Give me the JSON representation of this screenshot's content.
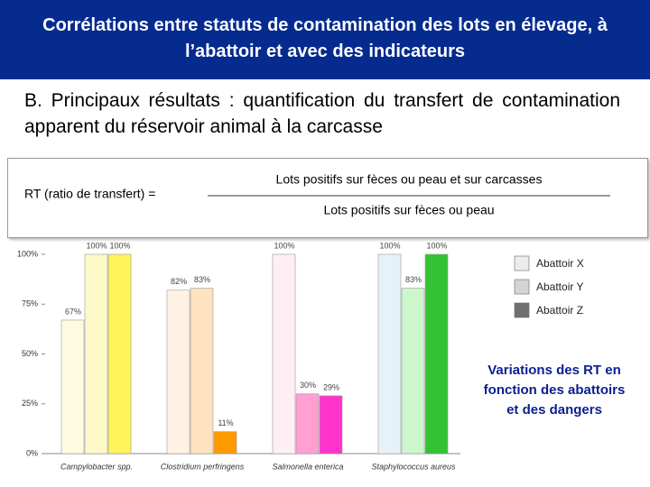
{
  "header": {
    "title": "Corrélations entre statuts de contamination des lots en élevage, à l’abattoir et avec des indicateurs"
  },
  "section": {
    "text": "B. Principaux résultats : quantification du transfert de contamination apparent du réservoir animal à la carcasse"
  },
  "formula": {
    "label": "RT (ratio de transfert) =",
    "numerator": "Lots positifs sur fèces ou peau et sur carcasses",
    "denominator": "Lots positifs sur fèces ou peau"
  },
  "chart_data": {
    "type": "bar",
    "categories": [
      "Campylobacter spp.",
      "Clostridium perfringens",
      "Salmonella enterica",
      "Staphylococcus aureus"
    ],
    "series": [
      {
        "name": "Abattoir X",
        "color": "#ececec",
        "colors": [
          "#fffbe0",
          "#fff2e4",
          "#ffeef6",
          "#e6f2fa"
        ],
        "values": [
          67,
          82,
          100,
          100
        ],
        "value_labels": [
          "67%",
          "82%",
          "100%",
          "100%"
        ]
      },
      {
        "name": "Abattoir Y",
        "color": "#d4d4d4",
        "colors": [
          "#fff8c8",
          "#ffe2c0",
          "#ff9fd2",
          "#ccf7cc"
        ],
        "values": [
          100,
          83,
          30,
          83
        ],
        "value_labels": [
          "100%",
          "83%",
          "30%",
          "83%"
        ]
      },
      {
        "name": "Abattoir Z",
        "color": "#707070",
        "colors": [
          "#fff45a",
          "#ff9a00",
          "#ff33cc",
          "#33c233"
        ],
        "values": [
          100,
          11,
          29,
          100
        ],
        "value_labels": [
          "100%",
          "11%",
          "29%",
          "100%"
        ]
      }
    ],
    "ylim": [
      0,
      100
    ],
    "yticks": [
      {
        "value": 0,
        "label": "0%"
      },
      {
        "value": 25,
        "label": "25%"
      },
      {
        "value": 50,
        "label": "50%"
      },
      {
        "value": 75,
        "label": "75%"
      },
      {
        "value": 100,
        "label": "100%"
      }
    ],
    "legend": "right",
    "annotation": "Variations des RT en fonction des abattoirs et des dangers"
  }
}
